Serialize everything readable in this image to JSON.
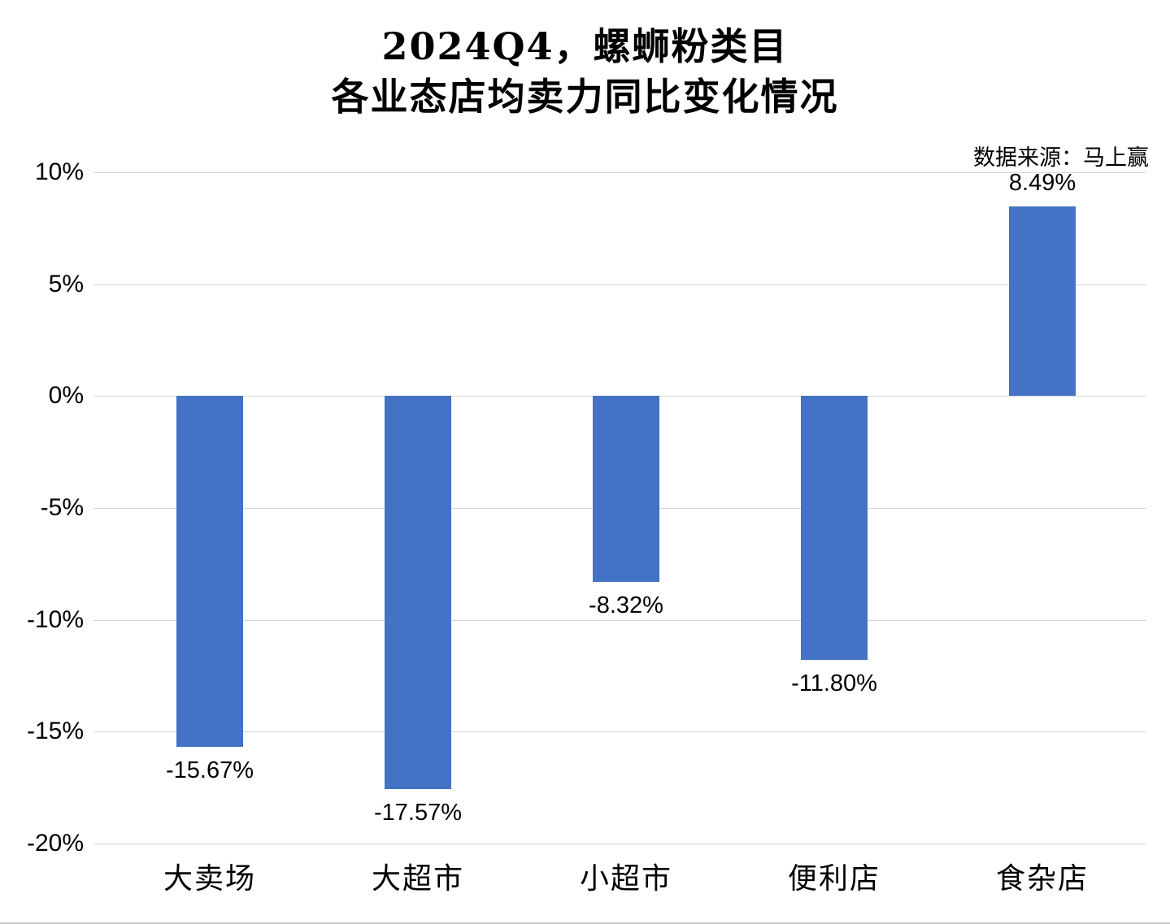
{
  "figure": {
    "title_line1": "2024Q4，螺蛳粉类目",
    "title_line2": "各业态店均卖力同比变化情况",
    "source_note": "数据来源：马上赢"
  },
  "chart_data": {
    "type": "bar",
    "title": "2024Q4，螺蛳粉类目 各业态店均卖力同比变化情况",
    "categories": [
      "大卖场",
      "大超市",
      "小超市",
      "便利店",
      "食杂店"
    ],
    "values": [
      -15.67,
      -17.57,
      -8.32,
      -11.8,
      8.49
    ],
    "data_labels": [
      "-15.67%",
      "-17.57%",
      "-8.32%",
      "-11.80%",
      "8.49%"
    ],
    "unit": "%",
    "ylabel": "",
    "xlabel": "",
    "ylim": [
      -20,
      10
    ],
    "ytick_values": [
      10,
      5,
      0,
      -5,
      -10,
      -15,
      -20
    ],
    "ytick_labels": [
      "10%",
      "5%",
      "0%",
      "-5%",
      "-10%",
      "-15%",
      "-20%"
    ],
    "grid": true,
    "legend": false,
    "bar_color": "#4472C4",
    "gridline_color": "#d6d6d6",
    "source": "数据来源：马上赢"
  }
}
